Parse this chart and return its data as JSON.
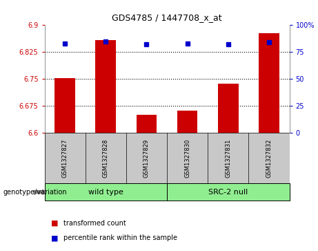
{
  "title": "GDS4785 / 1447708_x_at",
  "samples": [
    "GSM1327827",
    "GSM1327828",
    "GSM1327829",
    "GSM1327830",
    "GSM1327831",
    "GSM1327832"
  ],
  "red_values": [
    6.752,
    6.858,
    6.651,
    6.663,
    6.737,
    6.878
  ],
  "blue_values": [
    83,
    85,
    82,
    83,
    82,
    84
  ],
  "ylim_left": [
    6.6,
    6.9
  ],
  "ylim_right": [
    0,
    100
  ],
  "yticks_left": [
    6.6,
    6.675,
    6.75,
    6.825,
    6.9
  ],
  "yticks_right": [
    0,
    25,
    50,
    75,
    100
  ],
  "ytick_labels_left": [
    "6.6",
    "6.675",
    "6.75",
    "6.825",
    "6.9"
  ],
  "ytick_labels_right": [
    "0",
    "25",
    "50",
    "75",
    "100%"
  ],
  "hlines": [
    6.675,
    6.75,
    6.825
  ],
  "group1_label": "wild type",
  "group2_label": "SRC-2 null",
  "group1_color": "#90EE90",
  "group2_color": "#90EE90",
  "genotype_label": "genotype/variation",
  "legend1_label": "transformed count",
  "legend2_label": "percentile rank within the sample",
  "red_color": "#CC0000",
  "blue_color": "#0000CC",
  "bar_width": 0.5,
  "label_bg": "#C8C8C8",
  "plot_bg": "#FFFFFF"
}
